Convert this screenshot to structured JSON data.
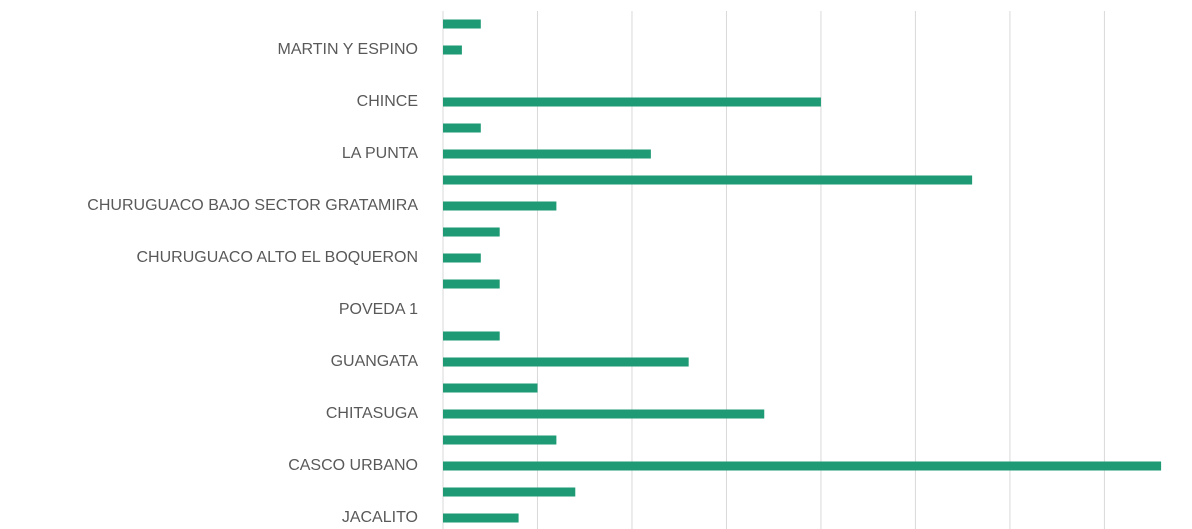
{
  "chart_data": {
    "type": "barh",
    "categories": [
      null,
      "MARTIN Y ESPINO",
      null,
      "CHINCE",
      null,
      "LA PUNTA",
      null,
      "CHURUGUACO BAJO SECTOR GRATAMIRA",
      null,
      "CHURUGUACO ALTO EL BOQUERON",
      null,
      "POVEDA 1",
      null,
      "GUANGATA",
      null,
      "CHITASUGA",
      null,
      "CASCO URBANO",
      null,
      "JACALITO"
    ],
    "values": [
      2,
      1,
      0,
      20,
      2,
      11,
      28,
      6,
      3,
      2,
      3,
      0,
      3,
      13,
      5,
      17,
      6,
      38,
      7,
      4
    ],
    "color": "#1e9a74",
    "xlim": [
      0,
      39
    ],
    "xticks": [
      0,
      5,
      10,
      15,
      20,
      25,
      30,
      35
    ],
    "grid": true
  }
}
